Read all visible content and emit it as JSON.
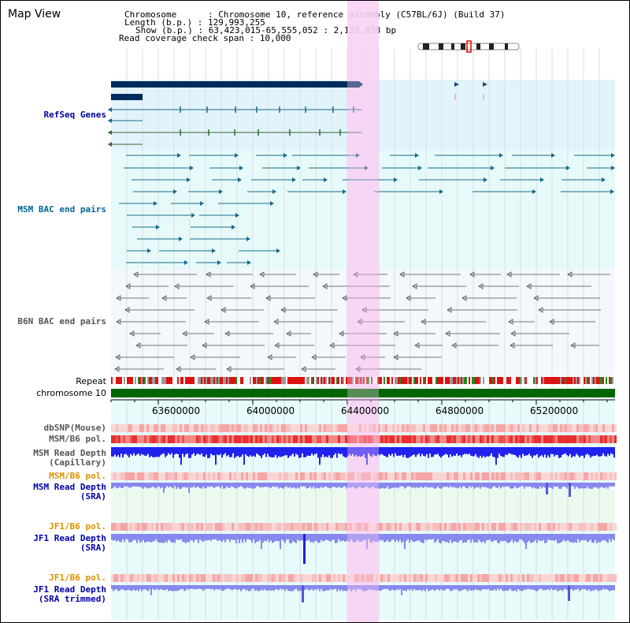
{
  "title": "Map View",
  "header": {
    "chromosome_key": "Chromosome",
    "chromosome_val": ": Chromosome 10, reference assembly (C57BL/6J) (Build 37)",
    "length_key": "Length (b.p.)",
    "length_val": ": 129,993,255",
    "show_key": "Show (b.p.)",
    "show_val": ": 63,423,015-65,555,052 : 2,132,038 bp",
    "span_key": "Read coverage check span",
    "span_val": ": 10,000"
  },
  "tracks": {
    "refseq": "RefSeq Genes",
    "msm_bac": "MSM BAC end pairs",
    "b6n_bac": "B6N BAC end pairs",
    "repeat": "Repeat",
    "chromosome": "chromosome 10",
    "dbsnp": "dbSNP(Mouse)",
    "msm_b6_pol": "MSM/B6 pol.",
    "msm_read_depth_cap_1": "MSM Read Depth",
    "msm_read_depth_cap_2": "(Capillary)",
    "msm_b6_pol_2": "MSM/B6 pol.",
    "msm_read_depth_sra_1": "MSM Read Depth",
    "msm_read_depth_sra_2": "(SRA)",
    "jf1_b6_pol": "JF1/B6 pol.",
    "jf1_read_depth_sra_1": "JF1 Read Depth",
    "jf1_read_depth_sra_2": "(SRA)",
    "jf1_b6_pol_2": "JF1/B6 pol.",
    "jf1_read_depth_trim_1": "JF1 Read Depth",
    "jf1_read_depth_trim_2": "(SRA trimmed)"
  },
  "axis": {
    "ticks": [
      "63600000",
      "64000000",
      "64400000",
      "64800000",
      "65200000"
    ]
  },
  "colors": {
    "refseq_bg": "#e2f4fb",
    "msm_bg": "#e6fafa",
    "b6n_bg": "#f4f7fb",
    "highlight": "#f8d2f4",
    "chromosome_bar": "#006600",
    "refseq_label": "#000099",
    "msm_label": "#006699",
    "b6n_label": "#555555",
    "orange_label": "#e09000",
    "blue_label": "#0000aa",
    "read_depth_dark": "#2222ee",
    "read_depth_light": "#8888ee"
  }
}
